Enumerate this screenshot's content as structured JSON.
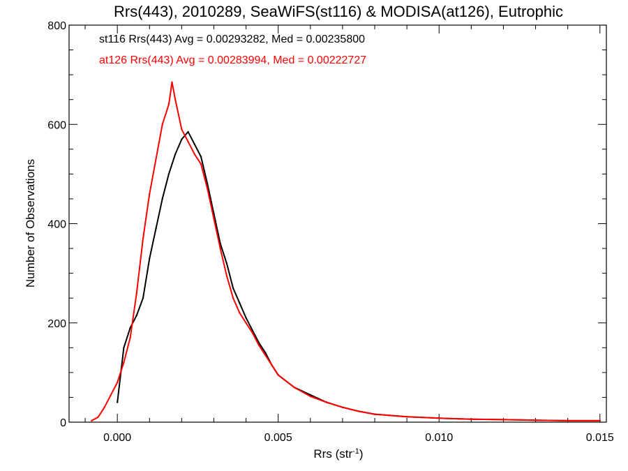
{
  "chart_data": {
    "type": "line",
    "title": "Rrs(443), 2010289, SeaWiFS(st116) & MODISA(at126), Eutrophic",
    "xlabel": "Rrs (str",
    "xlabel_superscript": "-1",
    "xlabel_close": ")",
    "ylabel": "Number of Observations",
    "xlim": [
      -0.0015,
      0.0152
    ],
    "ylim": [
      0,
      800
    ],
    "x_ticks": [
      0.0,
      0.005,
      0.01,
      0.015
    ],
    "x_tick_labels": [
      "0.000",
      "0.005",
      "0.010",
      "0.015"
    ],
    "y_ticks": [
      0,
      200,
      400,
      600,
      800
    ],
    "y_tick_labels": [
      "0",
      "200",
      "400",
      "600",
      "800"
    ],
    "grid": false,
    "legend_position": "top-left",
    "series": [
      {
        "name": "st116",
        "color": "#000000",
        "stats_text": "st116 Rrs(443) Avg = 0.00293282, Med = 0.00235800",
        "x": [
          0.0,
          0.0002,
          0.0004,
          0.0006,
          0.0008,
          0.001,
          0.0012,
          0.0014,
          0.0016,
          0.0018,
          0.002,
          0.0022,
          0.0024,
          0.0026,
          0.0028,
          0.003,
          0.0032,
          0.0034,
          0.0036,
          0.0038,
          0.004,
          0.0042,
          0.0044,
          0.0046,
          0.0048,
          0.005,
          0.0055,
          0.006,
          0.0065,
          0.007,
          0.0075,
          0.008,
          0.009,
          0.01,
          0.011,
          0.012,
          0.013,
          0.014,
          0.015
        ],
        "values": [
          40,
          150,
          190,
          215,
          250,
          330,
          390,
          450,
          500,
          540,
          570,
          585,
          560,
          535,
          480,
          420,
          360,
          320,
          270,
          240,
          210,
          185,
          160,
          140,
          115,
          95,
          70,
          55,
          40,
          30,
          22,
          16,
          11,
          8,
          6,
          5,
          4,
          3,
          3
        ]
      },
      {
        "name": "at126",
        "color": "#ff0000",
        "stats_text": "at126 Rrs(443) Avg = 0.00283994, Med = 0.00222727",
        "x": [
          -0.0008,
          -0.0006,
          -0.0004,
          -0.0002,
          0.0,
          0.0002,
          0.0004,
          0.0006,
          0.0008,
          0.001,
          0.0012,
          0.0014,
          0.0016,
          0.0017,
          0.0018,
          0.002,
          0.0022,
          0.0024,
          0.0026,
          0.0028,
          0.003,
          0.0032,
          0.0034,
          0.0036,
          0.0038,
          0.004,
          0.0042,
          0.0044,
          0.0046,
          0.0048,
          0.005,
          0.0055,
          0.006,
          0.0065,
          0.007,
          0.0075,
          0.008,
          0.009,
          0.01,
          0.011,
          0.012,
          0.013,
          0.014,
          0.015
        ],
        "values": [
          3,
          10,
          30,
          55,
          80,
          120,
          170,
          260,
          370,
          460,
          530,
          600,
          640,
          685,
          650,
          590,
          565,
          540,
          520,
          470,
          410,
          350,
          295,
          250,
          220,
          200,
          180,
          155,
          135,
          115,
          95,
          70,
          52,
          40,
          30,
          22,
          16,
          11,
          8,
          6,
          5,
          4,
          3,
          3
        ]
      }
    ]
  }
}
